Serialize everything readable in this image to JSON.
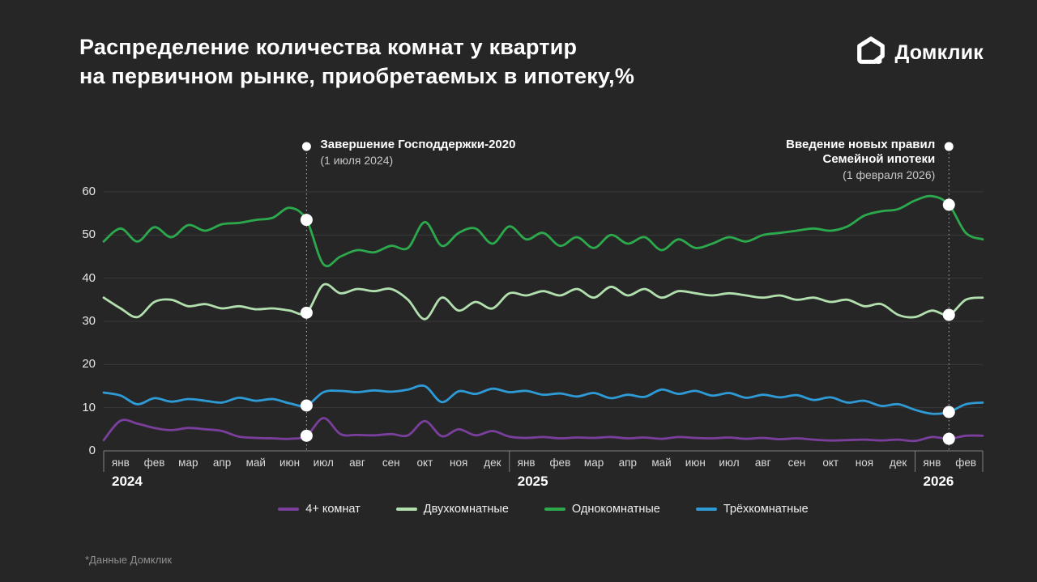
{
  "page": {
    "background": "#262626",
    "title_lines": [
      "Распределение количества комнат у квартир",
      "на первичном рынке, приобретаемых в ипотеку,%"
    ],
    "brand": {
      "name": "Домклик"
    },
    "footnote": "*Данные Домклик"
  },
  "annotations": [
    {
      "title_lines": [
        "Завершение Господдержки-2020"
      ],
      "subtitle": "(1 июля 2024)",
      "month_index": 6,
      "side": "right"
    },
    {
      "title_lines": [
        "Введение новых правил",
        "Семейной ипотеки"
      ],
      "subtitle": "(1 февраля 2026)",
      "month_index": 25,
      "side": "left"
    }
  ],
  "chart_data": {
    "type": "line",
    "title": "Распределение количества комнат у квартир на первичном рынке, приобретаемых в ипотеку, %",
    "ylabel": "%",
    "ylim": [
      0,
      60
    ],
    "yticks": [
      0,
      10,
      20,
      30,
      40,
      50,
      60
    ],
    "grid": true,
    "x_start": "январь 2024",
    "x_step_months": 0.5,
    "x_axis_years": [
      {
        "label": "2024",
        "months": [
          "янв",
          "фев",
          "мар",
          "апр",
          "май",
          "июн",
          "июл",
          "авг",
          "сен",
          "окт",
          "ноя",
          "дек"
        ]
      },
      {
        "label": "2025",
        "months": [
          "янв",
          "фев",
          "мар",
          "апр",
          "май",
          "июн",
          "июл",
          "авг",
          "сен",
          "окт",
          "ноя",
          "дек"
        ]
      },
      {
        "label": "2026",
        "months": [
          "янв",
          "фев"
        ]
      }
    ],
    "event_marker_month_indices": [
      6,
      25
    ],
    "series": [
      {
        "name": "Однокомнатные",
        "color": "#2ca94d",
        "values": [
          48.5,
          51.5,
          48.5,
          51.8,
          49.5,
          52.3,
          51.0,
          52.5,
          52.8,
          53.5,
          54.0,
          56.3,
          53.5,
          43.2,
          45.0,
          46.5,
          46.0,
          47.5,
          47.0,
          53.0,
          47.5,
          50.5,
          51.5,
          48.0,
          52.0,
          49.0,
          50.5,
          47.5,
          49.5,
          47.0,
          50.0,
          48.0,
          49.5,
          46.5,
          49.0,
          47.0,
          48.0,
          49.5,
          48.5,
          50.0,
          50.5,
          51.0,
          51.5,
          51.0,
          52.0,
          54.5,
          55.5,
          56.0,
          58.0,
          59.0,
          57.0,
          50.5,
          49.0
        ]
      },
      {
        "name": "Двухкомнатные",
        "color": "#b2dfae",
        "values": [
          35.5,
          33.0,
          31.0,
          34.5,
          35.0,
          33.5,
          34.0,
          33.0,
          33.5,
          32.8,
          33.0,
          32.5,
          32.0,
          38.5,
          36.5,
          37.5,
          37.0,
          37.5,
          35.0,
          30.5,
          35.5,
          32.5,
          34.5,
          33.0,
          36.5,
          36.0,
          37.0,
          36.0,
          37.5,
          35.5,
          38.0,
          36.0,
          37.5,
          35.5,
          37.0,
          36.5,
          36.0,
          36.5,
          36.0,
          35.5,
          36.0,
          35.0,
          35.5,
          34.5,
          35.0,
          33.5,
          34.0,
          31.5,
          31.0,
          32.5,
          31.5,
          35.0,
          35.5
        ]
      },
      {
        "name": "Трёхкомнатные",
        "color": "#2e9bd6",
        "values": [
          13.5,
          12.8,
          10.8,
          12.2,
          11.4,
          12.0,
          11.6,
          11.2,
          12.3,
          11.6,
          12.0,
          11.0,
          10.5,
          13.6,
          13.9,
          13.6,
          14.0,
          13.7,
          14.2,
          15.0,
          11.3,
          13.8,
          13.2,
          14.4,
          13.6,
          13.9,
          13.0,
          13.3,
          12.6,
          13.4,
          12.2,
          13.0,
          12.5,
          14.2,
          13.2,
          13.9,
          12.8,
          13.4,
          12.3,
          13.0,
          12.4,
          12.9,
          11.8,
          12.4,
          11.2,
          11.6,
          10.4,
          10.8,
          9.5,
          8.6,
          9.0,
          10.8,
          11.2
        ]
      },
      {
        "name": "4+ комнат",
        "color": "#7a3f9c",
        "values": [
          2.5,
          7.0,
          6.3,
          5.3,
          4.8,
          5.3,
          5.0,
          4.6,
          3.3,
          3.0,
          2.9,
          2.8,
          3.5,
          7.6,
          3.9,
          3.7,
          3.6,
          3.9,
          3.6,
          6.9,
          3.4,
          5.0,
          3.6,
          4.6,
          3.3,
          3.0,
          3.2,
          2.9,
          3.1,
          3.0,
          3.2,
          2.9,
          3.1,
          2.8,
          3.2,
          3.0,
          2.9,
          3.1,
          2.8,
          3.0,
          2.7,
          2.9,
          2.6,
          2.4,
          2.5,
          2.6,
          2.4,
          2.6,
          2.3,
          3.2,
          2.8,
          3.5,
          3.5
        ]
      }
    ],
    "legend": [
      {
        "label": "4+ комнат",
        "color": "#7a3f9c"
      },
      {
        "label": "Двухкомнатные",
        "color": "#b2dfae"
      },
      {
        "label": "Однокомнатные",
        "color": "#2ca94d"
      },
      {
        "label": "Трёхкомнатные",
        "color": "#2e9bd6"
      }
    ],
    "legend_position": "bottom"
  }
}
